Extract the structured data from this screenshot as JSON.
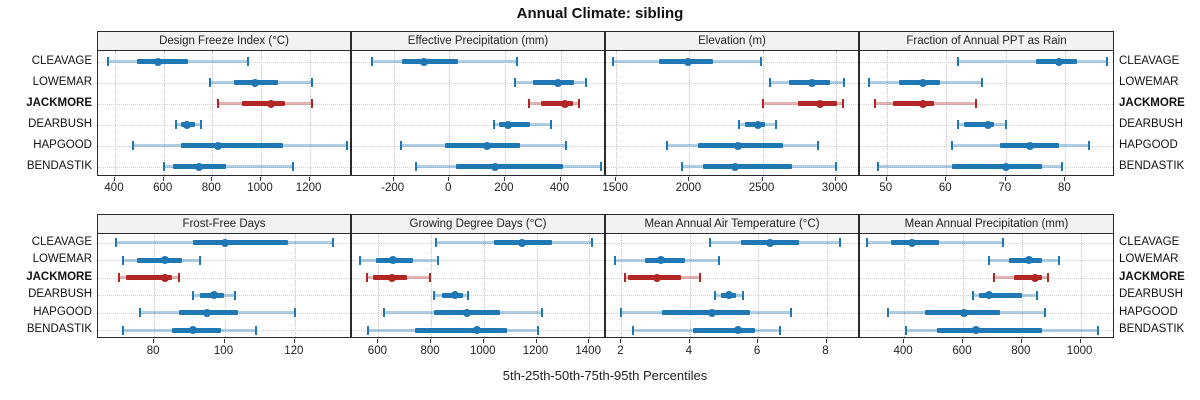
{
  "chart_data": {
    "type": "trellis-dotplot-percentiles",
    "title": "Annual Climate: sibling",
    "caption": "5th-25th-50th-75th-95th Percentiles",
    "legend_note": "each row shows 5th, 25th, 50th, 75th, 95th percentile whisker-band-dot",
    "colors": {
      "site_default": "#1F77B4",
      "site_default_light": "rgba(31,119,180,0.35)",
      "site_highlight": "#B22626",
      "site_highlight_light": "rgba(178,38,38,0.35)",
      "strip_bg": "#f2f2f2",
      "panel_border": "#2a2a2a",
      "grid": "#c6c6c6"
    },
    "sites": [
      {
        "name": "CLEAVAGE",
        "highlight": false,
        "bold": false
      },
      {
        "name": "LOWEMAR",
        "highlight": false,
        "bold": false
      },
      {
        "name": "JACKMORE",
        "highlight": true,
        "bold": true
      },
      {
        "name": "DEARBUSH",
        "highlight": false,
        "bold": false
      },
      {
        "name": "HAPGOOD",
        "highlight": false,
        "bold": false
      },
      {
        "name": "BENDASTIK",
        "highlight": false,
        "bold": false
      }
    ],
    "panels": [
      {
        "row": 0,
        "col": 0,
        "title": "Design Freeze Index (°C)",
        "domain": [
          330,
          1370
        ],
        "ticks": [
          400,
          600,
          800,
          1000,
          1200
        ],
        "percentiles": [
          [
            370,
            490,
            575,
            700,
            945
          ],
          [
            790,
            890,
            975,
            1070,
            1210
          ],
          [
            825,
            920,
            1040,
            1100,
            1210
          ],
          [
            650,
            670,
            695,
            730,
            755
          ],
          [
            475,
            670,
            825,
            1090,
            1355
          ],
          [
            600,
            640,
            745,
            855,
            1130
          ]
        ]
      },
      {
        "row": 0,
        "col": 1,
        "title": "Effective Precipitation (mm)",
        "domain": [
          -350,
          560
        ],
        "ticks": [
          -200,
          0,
          200,
          400
        ],
        "percentiles": [
          [
            -280,
            -170,
            -90,
            30,
            245
          ],
          [
            235,
            300,
            390,
            450,
            490
          ],
          [
            285,
            330,
            415,
            445,
            465
          ],
          [
            160,
            180,
            210,
            290,
            365
          ],
          [
            -175,
            -15,
            135,
            255,
            420
          ],
          [
            -120,
            25,
            165,
            410,
            545
          ]
        ]
      },
      {
        "row": 0,
        "col": 2,
        "title": "Elevation (m)",
        "domain": [
          1430,
          3160
        ],
        "ticks": [
          1500,
          2000,
          2500,
          3000
        ],
        "percentiles": [
          [
            1480,
            1790,
            1990,
            2160,
            2490
          ],
          [
            2550,
            2680,
            2840,
            2960,
            3060
          ],
          [
            2500,
            2740,
            2890,
            3010,
            3050
          ],
          [
            2340,
            2380,
            2470,
            2520,
            2590
          ],
          [
            1850,
            2060,
            2330,
            2640,
            2880
          ],
          [
            1950,
            2090,
            2310,
            2700,
            3000
          ]
        ]
      },
      {
        "row": 0,
        "col": 3,
        "title": "Fraction of Annual PPT as Rain",
        "domain": [
          45.5,
          88
        ],
        "ticks": [
          50,
          60,
          70,
          80
        ],
        "percentiles": [
          [
            62,
            75,
            79,
            82,
            87
          ],
          [
            47,
            52,
            56,
            59,
            66
          ],
          [
            48,
            51,
            56,
            58,
            65
          ],
          [
            62,
            63,
            67,
            68,
            70
          ],
          [
            61,
            69,
            74,
            79,
            84
          ],
          [
            48.5,
            61,
            70,
            76,
            79.5
          ]
        ]
      },
      {
        "row": 1,
        "col": 0,
        "title": "Frost-Free Days",
        "domain": [
          64,
          136
        ],
        "ticks": [
          80,
          100,
          120
        ],
        "percentiles": [
          [
            69,
            91,
            100,
            118,
            131
          ],
          [
            71,
            75,
            83,
            88,
            93
          ],
          [
            70,
            72,
            83,
            85,
            87
          ],
          [
            91,
            93,
            97,
            100,
            103
          ],
          [
            76,
            87,
            95,
            104,
            120
          ],
          [
            71,
            85,
            91,
            99,
            109
          ]
        ]
      },
      {
        "row": 1,
        "col": 1,
        "title": "Growing Degree Days (°C)",
        "domain": [
          500,
          1460
        ],
        "ticks": [
          600,
          800,
          1000,
          1200,
          1400
        ],
        "percentiles": [
          [
            820,
            1040,
            1145,
            1260,
            1410
          ],
          [
            530,
            590,
            655,
            730,
            825
          ],
          [
            555,
            580,
            650,
            710,
            795
          ],
          [
            810,
            840,
            890,
            920,
            940
          ],
          [
            620,
            810,
            935,
            1060,
            1220
          ],
          [
            560,
            740,
            975,
            1090,
            1205
          ]
        ]
      },
      {
        "row": 1,
        "col": 2,
        "title": "Mean Annual Air Temperature (°C)",
        "domain": [
          1.55,
          8.95
        ],
        "ticks": [
          2,
          4,
          6,
          8
        ],
        "percentiles": [
          [
            4.6,
            5.5,
            6.35,
            7.2,
            8.4
          ],
          [
            1.8,
            2.7,
            3.15,
            3.85,
            4.85
          ],
          [
            2.1,
            2.2,
            3.05,
            3.75,
            4.3
          ],
          [
            4.75,
            4.9,
            5.15,
            5.35,
            5.55
          ],
          [
            2.0,
            3.2,
            4.65,
            5.75,
            6.95
          ],
          [
            2.35,
            4.1,
            5.4,
            5.9,
            6.65
          ]
        ]
      },
      {
        "row": 1,
        "col": 3,
        "title": "Mean Annual Precipitation (mm)",
        "domain": [
          250,
          1110
        ],
        "ticks": [
          400,
          600,
          800,
          1000
        ],
        "percentiles": [
          [
            275,
            355,
            425,
            520,
            735
          ],
          [
            690,
            755,
            825,
            870,
            925
          ],
          [
            705,
            775,
            845,
            870,
            890
          ],
          [
            635,
            655,
            690,
            800,
            850
          ],
          [
            345,
            470,
            605,
            725,
            880
          ],
          [
            405,
            510,
            645,
            870,
            1060
          ]
        ]
      }
    ]
  }
}
